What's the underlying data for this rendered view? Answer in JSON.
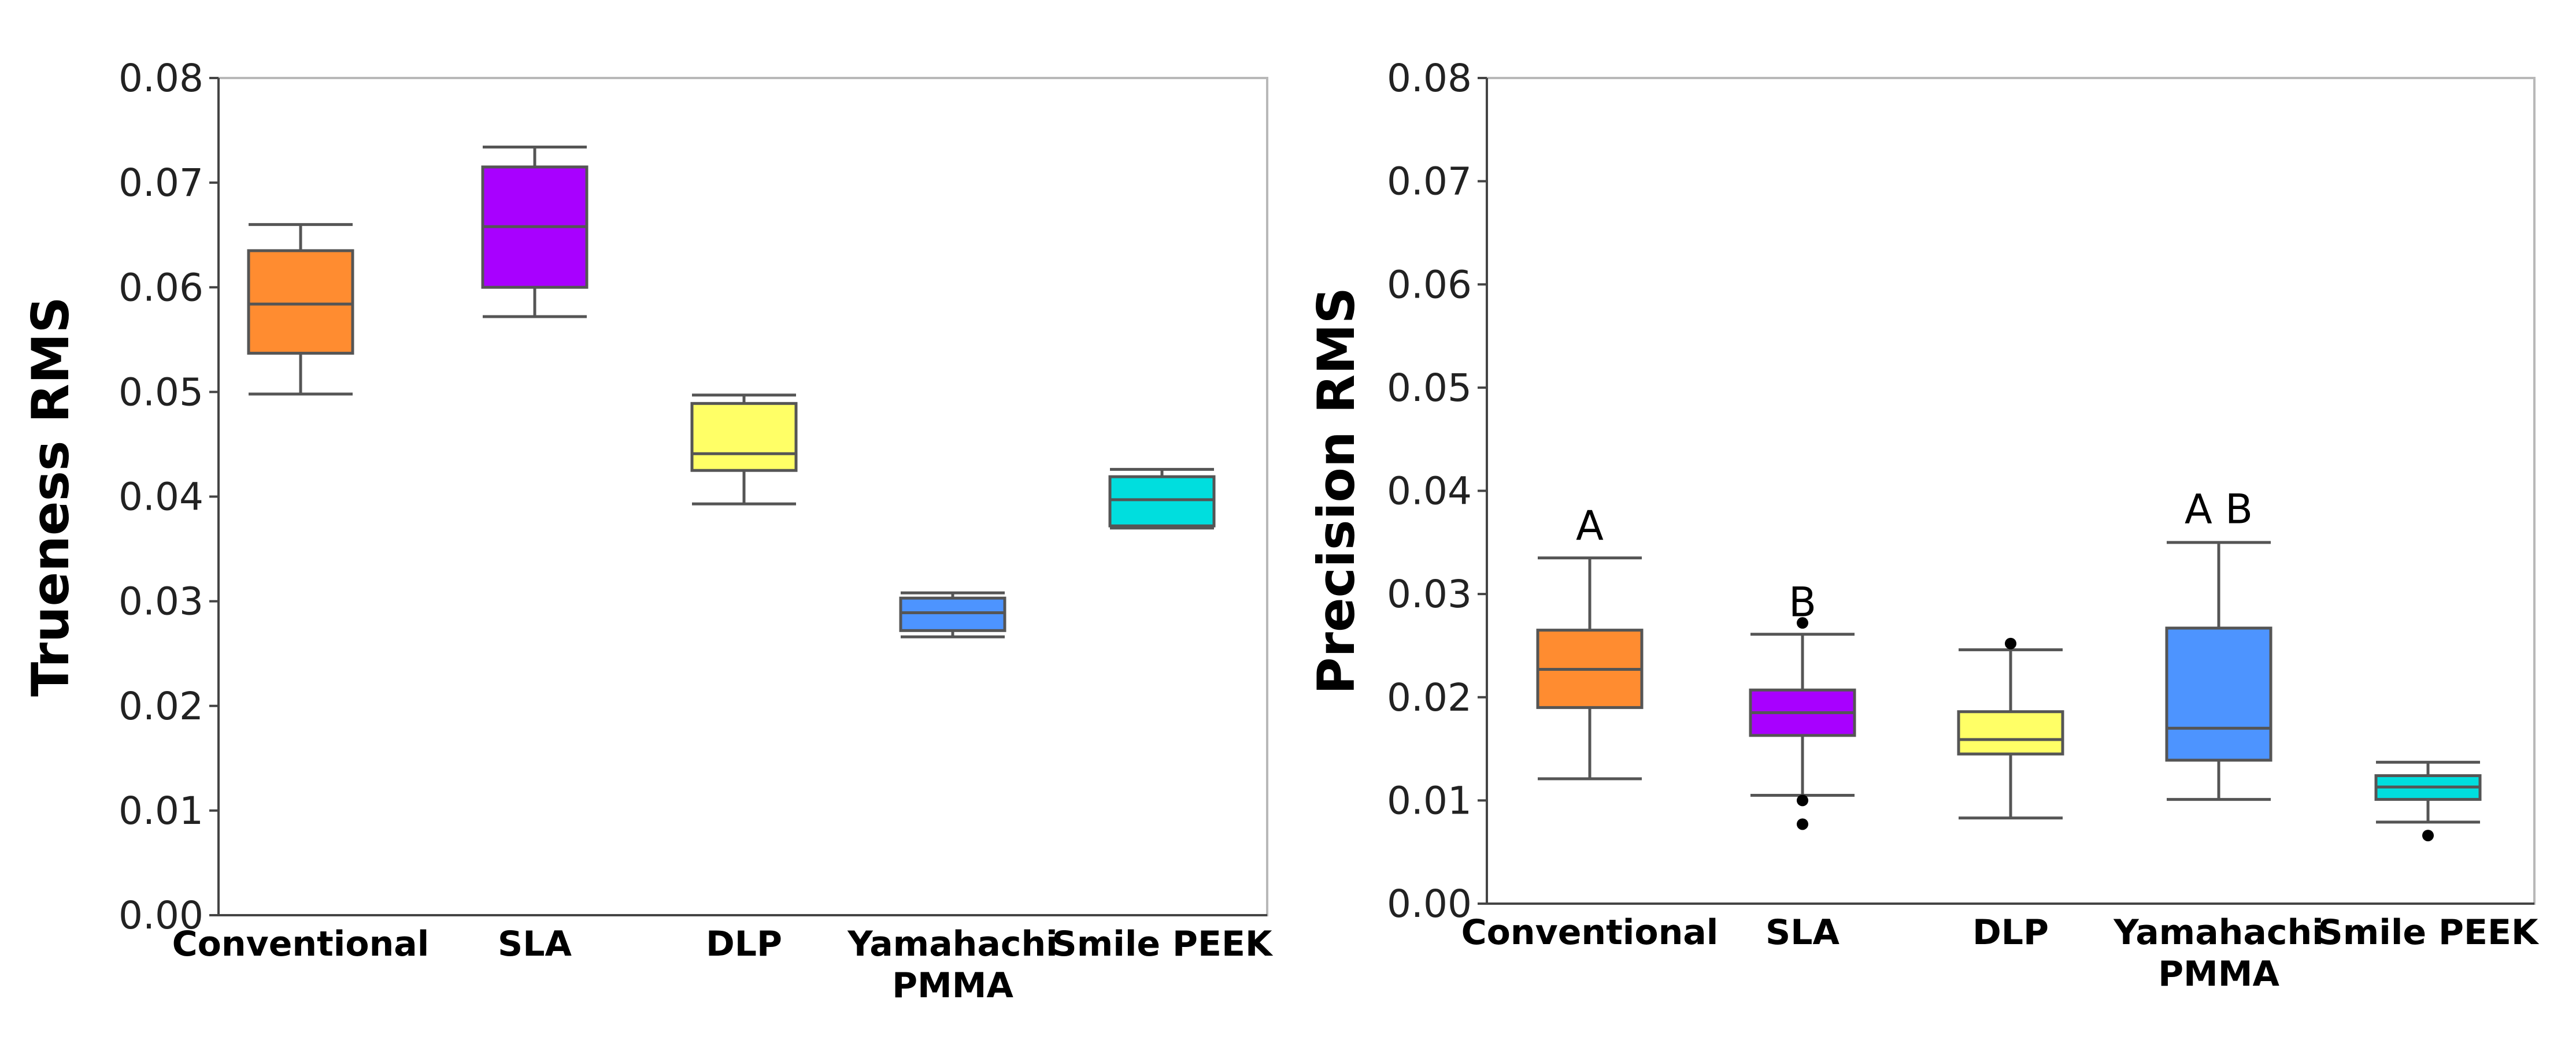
{
  "chart_data": [
    {
      "type": "box",
      "title": "",
      "xlabel": "",
      "ylabel": "Trueness RMS",
      "ylim": [
        0,
        0.08
      ],
      "yticks": [
        "0.00",
        "0.01",
        "0.02",
        "0.03",
        "0.04",
        "0.05",
        "0.06",
        "0.07",
        "0.08"
      ],
      "grid": false,
      "categories": [
        {
          "line1": "Conventional",
          "line2": ""
        },
        {
          "line1": "SLA",
          "line2": ""
        },
        {
          "line1": "DLP",
          "line2": ""
        },
        {
          "line1": "Yamahachi",
          "line2": "PMMA"
        },
        {
          "line1": "Smile PEEK",
          "line2": ""
        }
      ],
      "colors": [
        "#ff8c30",
        "#a800ff",
        "#ffff66",
        "#4d94ff",
        "#00dede"
      ],
      "boxes": [
        {
          "min": 0.0498,
          "q1": 0.0537,
          "median": 0.0584,
          "q3": 0.0635,
          "max": 0.066,
          "outliers": []
        },
        {
          "min": 0.0572,
          "q1": 0.06,
          "median": 0.0658,
          "q3": 0.0715,
          "max": 0.0734,
          "outliers": []
        },
        {
          "min": 0.0393,
          "q1": 0.0425,
          "median": 0.0441,
          "q3": 0.0489,
          "max": 0.0497,
          "outliers": []
        },
        {
          "min": 0.0266,
          "q1": 0.0272,
          "median": 0.0289,
          "q3": 0.0303,
          "max": 0.0308,
          "outliers": []
        },
        {
          "min": 0.037,
          "q1": 0.0372,
          "median": 0.0397,
          "q3": 0.0419,
          "max": 0.0426,
          "outliers": []
        }
      ],
      "annotations": []
    },
    {
      "type": "box",
      "title": "",
      "xlabel": "",
      "ylabel": "Precision RMS",
      "ylim": [
        0,
        0.08
      ],
      "yticks": [
        "0.00",
        "0.01",
        "0.02",
        "0.03",
        "0.04",
        "0.05",
        "0.06",
        "0.07",
        "0.08"
      ],
      "grid": false,
      "categories": [
        {
          "line1": "Conventional",
          "line2": ""
        },
        {
          "line1": "SLA",
          "line2": ""
        },
        {
          "line1": "DLP",
          "line2": ""
        },
        {
          "line1": "Yamahachi",
          "line2": "PMMA"
        },
        {
          "line1": "Smile PEEK",
          "line2": ""
        }
      ],
      "colors": [
        "#ff8c30",
        "#a800ff",
        "#ffff66",
        "#4d94ff",
        "#00dede"
      ],
      "boxes": [
        {
          "min": 0.0121,
          "q1": 0.019,
          "median": 0.0227,
          "q3": 0.0265,
          "max": 0.0335,
          "outliers": []
        },
        {
          "min": 0.0105,
          "q1": 0.0163,
          "median": 0.0185,
          "q3": 0.0207,
          "max": 0.0261,
          "outliers": [
            0.0272,
            0.01,
            0.0077
          ]
        },
        {
          "min": 0.0083,
          "q1": 0.0145,
          "median": 0.0159,
          "q3": 0.0186,
          "max": 0.0246,
          "outliers": [
            0.0252
          ]
        },
        {
          "min": 0.0101,
          "q1": 0.0139,
          "median": 0.017,
          "q3": 0.0267,
          "max": 0.035,
          "outliers": []
        },
        {
          "min": 0.0079,
          "q1": 0.0101,
          "median": 0.0113,
          "q3": 0.0124,
          "max": 0.0137,
          "outliers": [
            0.0066
          ]
        }
      ],
      "annotations": [
        {
          "category": 0,
          "text": "A",
          "y": 0.0366
        },
        {
          "category": 1,
          "text": "B",
          "y": 0.0292
        },
        {
          "category": 3,
          "text": "A B",
          "y": 0.0382
        }
      ]
    }
  ]
}
